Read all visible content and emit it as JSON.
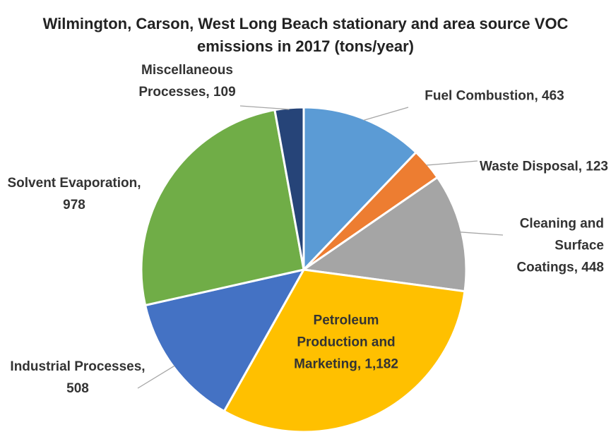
{
  "chart_data": {
    "type": "pie",
    "title": "Wilmington, Carson, West Long Beach stationary and area source VOC emissions in 2017 (tons/year)",
    "categories": [
      "Fuel Combustion",
      "Waste Disposal",
      "Cleaning and Surface Coatings",
      "Petroleum Production and Marketing",
      "Industrial Processes",
      "Solvent Evaporation",
      "Miscellaneous Processes"
    ],
    "values": [
      463,
      123,
      448,
      1182,
      508,
      978,
      109
    ],
    "value_labels": [
      "463",
      "123",
      "448",
      "1,182",
      "508",
      "978",
      "109"
    ],
    "colors": [
      "#5b9bd5",
      "#ed7d31",
      "#a5a5a5",
      "#ffc000",
      "#4472c4",
      "#70ad47",
      "#264478"
    ]
  }
}
